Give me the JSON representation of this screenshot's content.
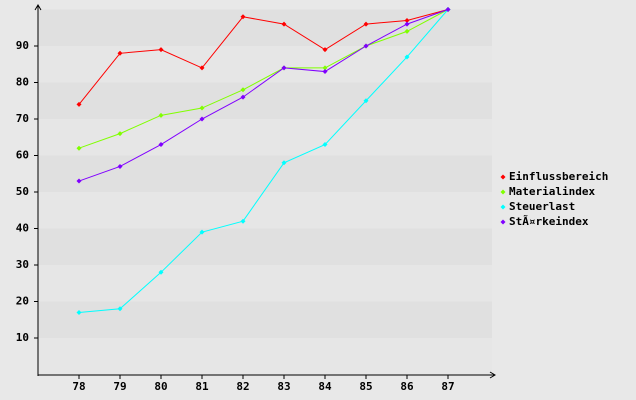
{
  "chart_data": {
    "type": "line",
    "categories": [
      "78",
      "79",
      "80",
      "81",
      "82",
      "83",
      "84",
      "85",
      "86",
      "87"
    ],
    "series": [
      {
        "name": "Einflussbereich",
        "color": "#ff0000",
        "values": [
          74,
          88,
          89,
          84,
          98,
          96,
          89,
          96,
          97,
          100
        ]
      },
      {
        "name": "Materialindex",
        "color": "#80ff00",
        "values": [
          62,
          66,
          71,
          73,
          78,
          84,
          84,
          90,
          94,
          100
        ]
      },
      {
        "name": "Steuerlast",
        "color": "#00ffff",
        "values": [
          17,
          18,
          28,
          39,
          42,
          58,
          63,
          75,
          87,
          100
        ]
      },
      {
        "name": "StÃ¤rkeindex",
        "color": "#8000ff",
        "values": [
          53,
          57,
          63,
          70,
          76,
          84,
          83,
          90,
          96,
          100
        ]
      }
    ],
    "ylim": [
      0,
      100
    ],
    "yticks": [
      10,
      20,
      30,
      40,
      50,
      60,
      70,
      80,
      90
    ],
    "legend": "right"
  }
}
